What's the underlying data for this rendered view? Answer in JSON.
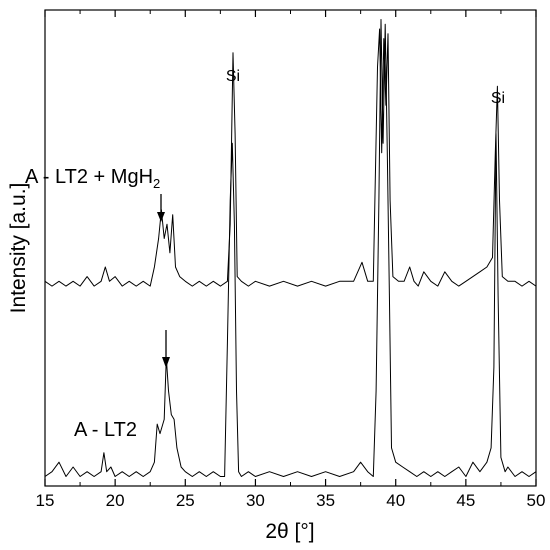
{
  "chart_data": {
    "type": "line",
    "xlabel": "2θ [°]",
    "ylabel": "Intensity [a.u.]",
    "xlim": [
      15,
      50
    ],
    "xticks": [
      15,
      20,
      25,
      30,
      35,
      40,
      45,
      50
    ],
    "ylim": [
      0,
      100
    ],
    "yticks_visible": false,
    "grid": false,
    "series": [
      {
        "name": "A - LT2 + MgH2",
        "points": [
          [
            15,
            43
          ],
          [
            15.5,
            42
          ],
          [
            16,
            43
          ],
          [
            16.5,
            42
          ],
          [
            17,
            43
          ],
          [
            17.5,
            42
          ],
          [
            18,
            44
          ],
          [
            18.5,
            42
          ],
          [
            19,
            43
          ],
          [
            19.3,
            46
          ],
          [
            19.6,
            43
          ],
          [
            20,
            44
          ],
          [
            20.5,
            42
          ],
          [
            21,
            43
          ],
          [
            21.5,
            42
          ],
          [
            22,
            43
          ],
          [
            22.5,
            42
          ],
          [
            22.8,
            46
          ],
          [
            23.1,
            52
          ],
          [
            23.3,
            58
          ],
          [
            23.5,
            52
          ],
          [
            23.7,
            55
          ],
          [
            23.9,
            49
          ],
          [
            24.1,
            57
          ],
          [
            24.3,
            46
          ],
          [
            24.6,
            44
          ],
          [
            25,
            43
          ],
          [
            25.5,
            42
          ],
          [
            26,
            43
          ],
          [
            26.5,
            42
          ],
          [
            27,
            43
          ],
          [
            27.5,
            42
          ],
          [
            28,
            43
          ],
          [
            28.2,
            55
          ],
          [
            28.4,
            91
          ],
          [
            28.55,
            74
          ],
          [
            28.7,
            44
          ],
          [
            29,
            43
          ],
          [
            29.5,
            42
          ],
          [
            30,
            43
          ],
          [
            31,
            42
          ],
          [
            32,
            43
          ],
          [
            33,
            42
          ],
          [
            34,
            43
          ],
          [
            35,
            42
          ],
          [
            36,
            43
          ],
          [
            37,
            43
          ],
          [
            37.6,
            47
          ],
          [
            38,
            43
          ],
          [
            38.4,
            43
          ],
          [
            38.7,
            88
          ],
          [
            38.85,
            96
          ],
          [
            39.0,
            70
          ],
          [
            39.15,
            94
          ],
          [
            39.3,
            80
          ],
          [
            39.45,
            95
          ],
          [
            39.6,
            60
          ],
          [
            39.8,
            44
          ],
          [
            40.2,
            43
          ],
          [
            40.6,
            43
          ],
          [
            41,
            46
          ],
          [
            41.3,
            43
          ],
          [
            41.6,
            42
          ],
          [
            42,
            45
          ],
          [
            42.5,
            43
          ],
          [
            43,
            42
          ],
          [
            43.5,
            45
          ],
          [
            44,
            43
          ],
          [
            44.5,
            42
          ],
          [
            45,
            43
          ],
          [
            45.5,
            44
          ],
          [
            46,
            45
          ],
          [
            46.5,
            46
          ],
          [
            46.9,
            48
          ],
          [
            47.1,
            70
          ],
          [
            47.25,
            84
          ],
          [
            47.4,
            60
          ],
          [
            47.6,
            44
          ],
          [
            48,
            43
          ],
          [
            48.5,
            43
          ],
          [
            49,
            42
          ],
          [
            49.5,
            43
          ],
          [
            50,
            42
          ]
        ]
      },
      {
        "name": "A - LT2",
        "points": [
          [
            15,
            2
          ],
          [
            15.5,
            3
          ],
          [
            16,
            5
          ],
          [
            16.5,
            2
          ],
          [
            17,
            4
          ],
          [
            17.5,
            2
          ],
          [
            18,
            3
          ],
          [
            18.5,
            2
          ],
          [
            19,
            3
          ],
          [
            19.2,
            7
          ],
          [
            19.4,
            3
          ],
          [
            19.7,
            4
          ],
          [
            20,
            2
          ],
          [
            20.5,
            3
          ],
          [
            21,
            2
          ],
          [
            21.5,
            3
          ],
          [
            22,
            2
          ],
          [
            22.5,
            3
          ],
          [
            22.8,
            5
          ],
          [
            23.0,
            13
          ],
          [
            23.2,
            11
          ],
          [
            23.5,
            14
          ],
          [
            23.65,
            27
          ],
          [
            23.8,
            20
          ],
          [
            24.0,
            15
          ],
          [
            24.2,
            14
          ],
          [
            24.4,
            8
          ],
          [
            24.7,
            4
          ],
          [
            25,
            3
          ],
          [
            25.5,
            2
          ],
          [
            26,
            3
          ],
          [
            26.5,
            2
          ],
          [
            27,
            3
          ],
          [
            27.5,
            2
          ],
          [
            27.8,
            2
          ],
          [
            28.0,
            30
          ],
          [
            28.2,
            60
          ],
          [
            28.35,
            72
          ],
          [
            28.5,
            55
          ],
          [
            28.65,
            20
          ],
          [
            28.8,
            3
          ],
          [
            29,
            2
          ],
          [
            29.5,
            3
          ],
          [
            30,
            2
          ],
          [
            31,
            3
          ],
          [
            32,
            2
          ],
          [
            33,
            3
          ],
          [
            34,
            2
          ],
          [
            35,
            3
          ],
          [
            36,
            2
          ],
          [
            37,
            3
          ],
          [
            37.5,
            5
          ],
          [
            38,
            3
          ],
          [
            38.4,
            2
          ],
          [
            38.6,
            20
          ],
          [
            38.8,
            60
          ],
          [
            38.95,
            98
          ],
          [
            39.1,
            72
          ],
          [
            39.25,
            97
          ],
          [
            39.4,
            70
          ],
          [
            39.55,
            40
          ],
          [
            39.7,
            8
          ],
          [
            40,
            5
          ],
          [
            40.5,
            4
          ],
          [
            41,
            3
          ],
          [
            41.5,
            2
          ],
          [
            42,
            3
          ],
          [
            42.5,
            2
          ],
          [
            43,
            3
          ],
          [
            43.5,
            2
          ],
          [
            44,
            3
          ],
          [
            44.5,
            4
          ],
          [
            45,
            2
          ],
          [
            45.5,
            5
          ],
          [
            46,
            3
          ],
          [
            46.5,
            5
          ],
          [
            46.8,
            8
          ],
          [
            47.0,
            25
          ],
          [
            47.15,
            74
          ],
          [
            47.3,
            40
          ],
          [
            47.5,
            6
          ],
          [
            47.8,
            3
          ],
          [
            48,
            4
          ],
          [
            48.5,
            2
          ],
          [
            49,
            3
          ],
          [
            49.5,
            2
          ],
          [
            50,
            3
          ]
        ]
      }
    ],
    "annotations": [
      {
        "text": "Si",
        "x": 28.4
      },
      {
        "text": "Si",
        "x": 47.25
      }
    ]
  },
  "labels": {
    "top_series_label": "A - LT2 + MgH",
    "top_series_subscript": "2",
    "bottom_series_label": "A - LT2",
    "si_label_1": "Si",
    "si_label_2": "Si"
  }
}
